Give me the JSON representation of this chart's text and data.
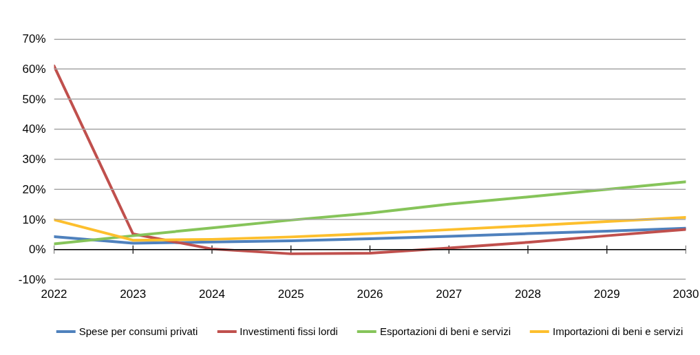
{
  "chart_data": {
    "type": "line",
    "x": [
      2022,
      2023,
      2024,
      2025,
      2026,
      2027,
      2028,
      2029,
      2030
    ],
    "xlim": [
      2022,
      2030
    ],
    "xticks": [
      2022,
      2023,
      2024,
      2025,
      2026,
      2027,
      2028,
      2029,
      2030
    ],
    "ylim": [
      -10,
      70
    ],
    "yticks": [
      {
        "value": -10,
        "label": "-10%"
      },
      {
        "value": 0,
        "label": "0%"
      },
      {
        "value": 10,
        "label": "10%"
      },
      {
        "value": 20,
        "label": "20%"
      },
      {
        "value": 30,
        "label": "30%"
      },
      {
        "value": 40,
        "label": "40%"
      },
      {
        "value": 50,
        "label": "50%"
      },
      {
        "value": 60,
        "label": "60%"
      },
      {
        "value": 70,
        "label": "70%"
      }
    ],
    "grid": "y",
    "legend": "bottom",
    "series": [
      {
        "name": "Spese per consumi privati",
        "color": "#4f81bd",
        "values": [
          4.3,
          2.1,
          2.5,
          2.9,
          3.6,
          4.4,
          5.3,
          6.1,
          7.1
        ]
      },
      {
        "name": "Investimenti fissi lordi",
        "color": "#c0504d",
        "values": [
          61,
          5.2,
          0.2,
          -1.4,
          -1.2,
          0.5,
          2.4,
          4.6,
          6.7
        ]
      },
      {
        "name": "Esportazioni di beni e servizi",
        "color": "#86c45a",
        "values": [
          1.9,
          4.6,
          7.2,
          9.8,
          12.1,
          15.1,
          17.5,
          20.0,
          22.5
        ]
      },
      {
        "name": "Importazioni di beni e servizi",
        "color": "#fdbf2d",
        "values": [
          9.9,
          3.1,
          3.4,
          4.2,
          5.3,
          6.6,
          7.9,
          9.3,
          10.7
        ]
      }
    ]
  }
}
